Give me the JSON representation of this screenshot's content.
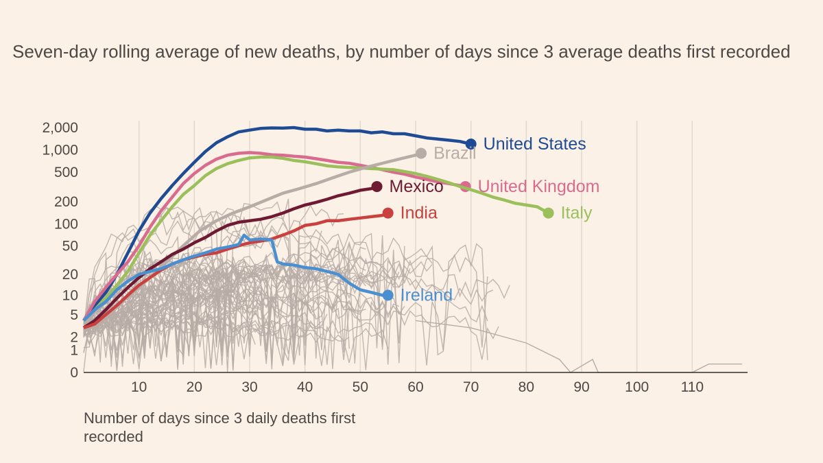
{
  "chart_data": {
    "type": "line",
    "title": "Seven-day rolling average of new deaths, by number of days since 3 average deaths first recorded",
    "xlabel": "Number of days since 3 daily deaths first recorded",
    "ylabel": "",
    "y_scale": "log (with 0)",
    "xlim": [
      0,
      120
    ],
    "ylim": [
      0,
      2000
    ],
    "x_ticks": [
      10,
      20,
      30,
      40,
      50,
      60,
      70,
      80,
      90,
      100,
      110
    ],
    "y_ticks": [
      {
        "value": 0,
        "label": "0"
      },
      {
        "value": 1,
        "label": "1"
      },
      {
        "value": 2,
        "label": "2"
      },
      {
        "value": 5,
        "label": "5"
      },
      {
        "value": 10,
        "label": "10"
      },
      {
        "value": 20,
        "label": "20"
      },
      {
        "value": 50,
        "label": "50"
      },
      {
        "value": 100,
        "label": "100"
      },
      {
        "value": 200,
        "label": "200"
      },
      {
        "value": 500,
        "label": "500"
      },
      {
        "value": 1000,
        "label": "1,000"
      },
      {
        "value": 2000,
        "label": "2,000"
      }
    ],
    "grid": "vertical",
    "series": [
      {
        "name": "United States",
        "color": "#1e4b94",
        "x": [
          0,
          2,
          4,
          6,
          8,
          10,
          12,
          14,
          16,
          18,
          20,
          22,
          24,
          26,
          28,
          30,
          32,
          34,
          36,
          38,
          40,
          42,
          44,
          46,
          48,
          50,
          52,
          54,
          56,
          58,
          60,
          62,
          64,
          66,
          68,
          70
        ],
        "y": [
          4,
          7,
          11,
          20,
          40,
          80,
          140,
          220,
          330,
          480,
          680,
          950,
          1250,
          1500,
          1750,
          1850,
          1950,
          1980,
          1970,
          2000,
          1900,
          1900,
          1800,
          1850,
          1800,
          1800,
          1700,
          1750,
          1650,
          1650,
          1550,
          1450,
          1400,
          1350,
          1300,
          1200
        ]
      },
      {
        "name": "United Kingdom",
        "color": "#d96b8f",
        "x": [
          0,
          2,
          4,
          6,
          8,
          10,
          12,
          14,
          16,
          18,
          20,
          22,
          24,
          26,
          28,
          30,
          32,
          34,
          36,
          38,
          40,
          42,
          44,
          46,
          48,
          50,
          52,
          54,
          56,
          58,
          60,
          62,
          64,
          66,
          68,
          69
        ],
        "y": [
          4,
          8,
          13,
          20,
          30,
          50,
          90,
          150,
          230,
          350,
          480,
          620,
          750,
          850,
          900,
          920,
          900,
          860,
          850,
          820,
          800,
          760,
          720,
          680,
          660,
          620,
          580,
          540,
          500,
          470,
          430,
          400,
          370,
          350,
          330,
          320
        ]
      },
      {
        "name": "Italy",
        "color": "#9bbf5a",
        "x": [
          0,
          2,
          4,
          6,
          8,
          10,
          12,
          14,
          16,
          18,
          20,
          22,
          24,
          26,
          28,
          30,
          32,
          34,
          36,
          38,
          40,
          42,
          44,
          46,
          48,
          50,
          52,
          54,
          56,
          58,
          60,
          62,
          64,
          66,
          68,
          70,
          72,
          74,
          76,
          78,
          80,
          82,
          84
        ],
        "y": [
          4,
          6,
          9,
          14,
          22,
          40,
          70,
          110,
          170,
          250,
          330,
          450,
          560,
          650,
          720,
          780,
          800,
          800,
          770,
          720,
          690,
          650,
          610,
          590,
          580,
          570,
          560,
          550,
          540,
          510,
          480,
          440,
          400,
          360,
          320,
          290,
          260,
          230,
          210,
          190,
          180,
          170,
          140
        ]
      },
      {
        "name": "Brazil",
        "color": "#b7aca6",
        "x": [
          0,
          3,
          6,
          9,
          12,
          15,
          18,
          21,
          24,
          27,
          30,
          33,
          36,
          39,
          42,
          45,
          48,
          51,
          54,
          57,
          60,
          61
        ],
        "y": [
          3,
          4,
          7,
          11,
          18,
          30,
          50,
          80,
          110,
          140,
          170,
          210,
          260,
          300,
          350,
          420,
          500,
          580,
          660,
          750,
          850,
          900
        ]
      },
      {
        "name": "Mexico",
        "color": "#6e1a32",
        "x": [
          0,
          2,
          4,
          6,
          8,
          10,
          12,
          14,
          16,
          18,
          20,
          22,
          24,
          26,
          28,
          30,
          32,
          34,
          36,
          38,
          40,
          42,
          44,
          46,
          48,
          50,
          52,
          53
        ],
        "y": [
          3,
          4,
          6,
          9,
          13,
          18,
          24,
          30,
          38,
          45,
          55,
          65,
          80,
          95,
          105,
          110,
          115,
          125,
          140,
          160,
          180,
          195,
          215,
          240,
          260,
          285,
          300,
          320
        ]
      },
      {
        "name": "India",
        "color": "#c9403f",
        "x": [
          0,
          2,
          4,
          6,
          8,
          10,
          12,
          14,
          16,
          18,
          20,
          22,
          24,
          26,
          28,
          30,
          32,
          34,
          36,
          38,
          40,
          42,
          44,
          46,
          48,
          50,
          52,
          54,
          55
        ],
        "y": [
          3,
          3.5,
          5,
          7,
          10,
          14,
          18,
          23,
          28,
          32,
          35,
          38,
          40,
          45,
          50,
          55,
          58,
          62,
          70,
          80,
          95,
          100,
          110,
          110,
          115,
          120,
          125,
          130,
          140
        ]
      },
      {
        "name": "Ireland",
        "color": "#4a90d0",
        "x": [
          0,
          2,
          4,
          6,
          8,
          10,
          12,
          14,
          16,
          18,
          20,
          22,
          24,
          26,
          28,
          29,
          30,
          32,
          34,
          35,
          36,
          38,
          40,
          42,
          44,
          46,
          48,
          50,
          52,
          54,
          55
        ],
        "y": [
          4,
          6,
          8,
          12,
          16,
          20,
          22,
          24,
          28,
          32,
          36,
          40,
          45,
          48,
          52,
          70,
          60,
          62,
          60,
          30,
          28,
          27,
          25,
          24,
          22,
          20,
          15,
          12,
          11,
          10,
          10
        ]
      }
    ],
    "background_series_color": "#b7aca6"
  }
}
